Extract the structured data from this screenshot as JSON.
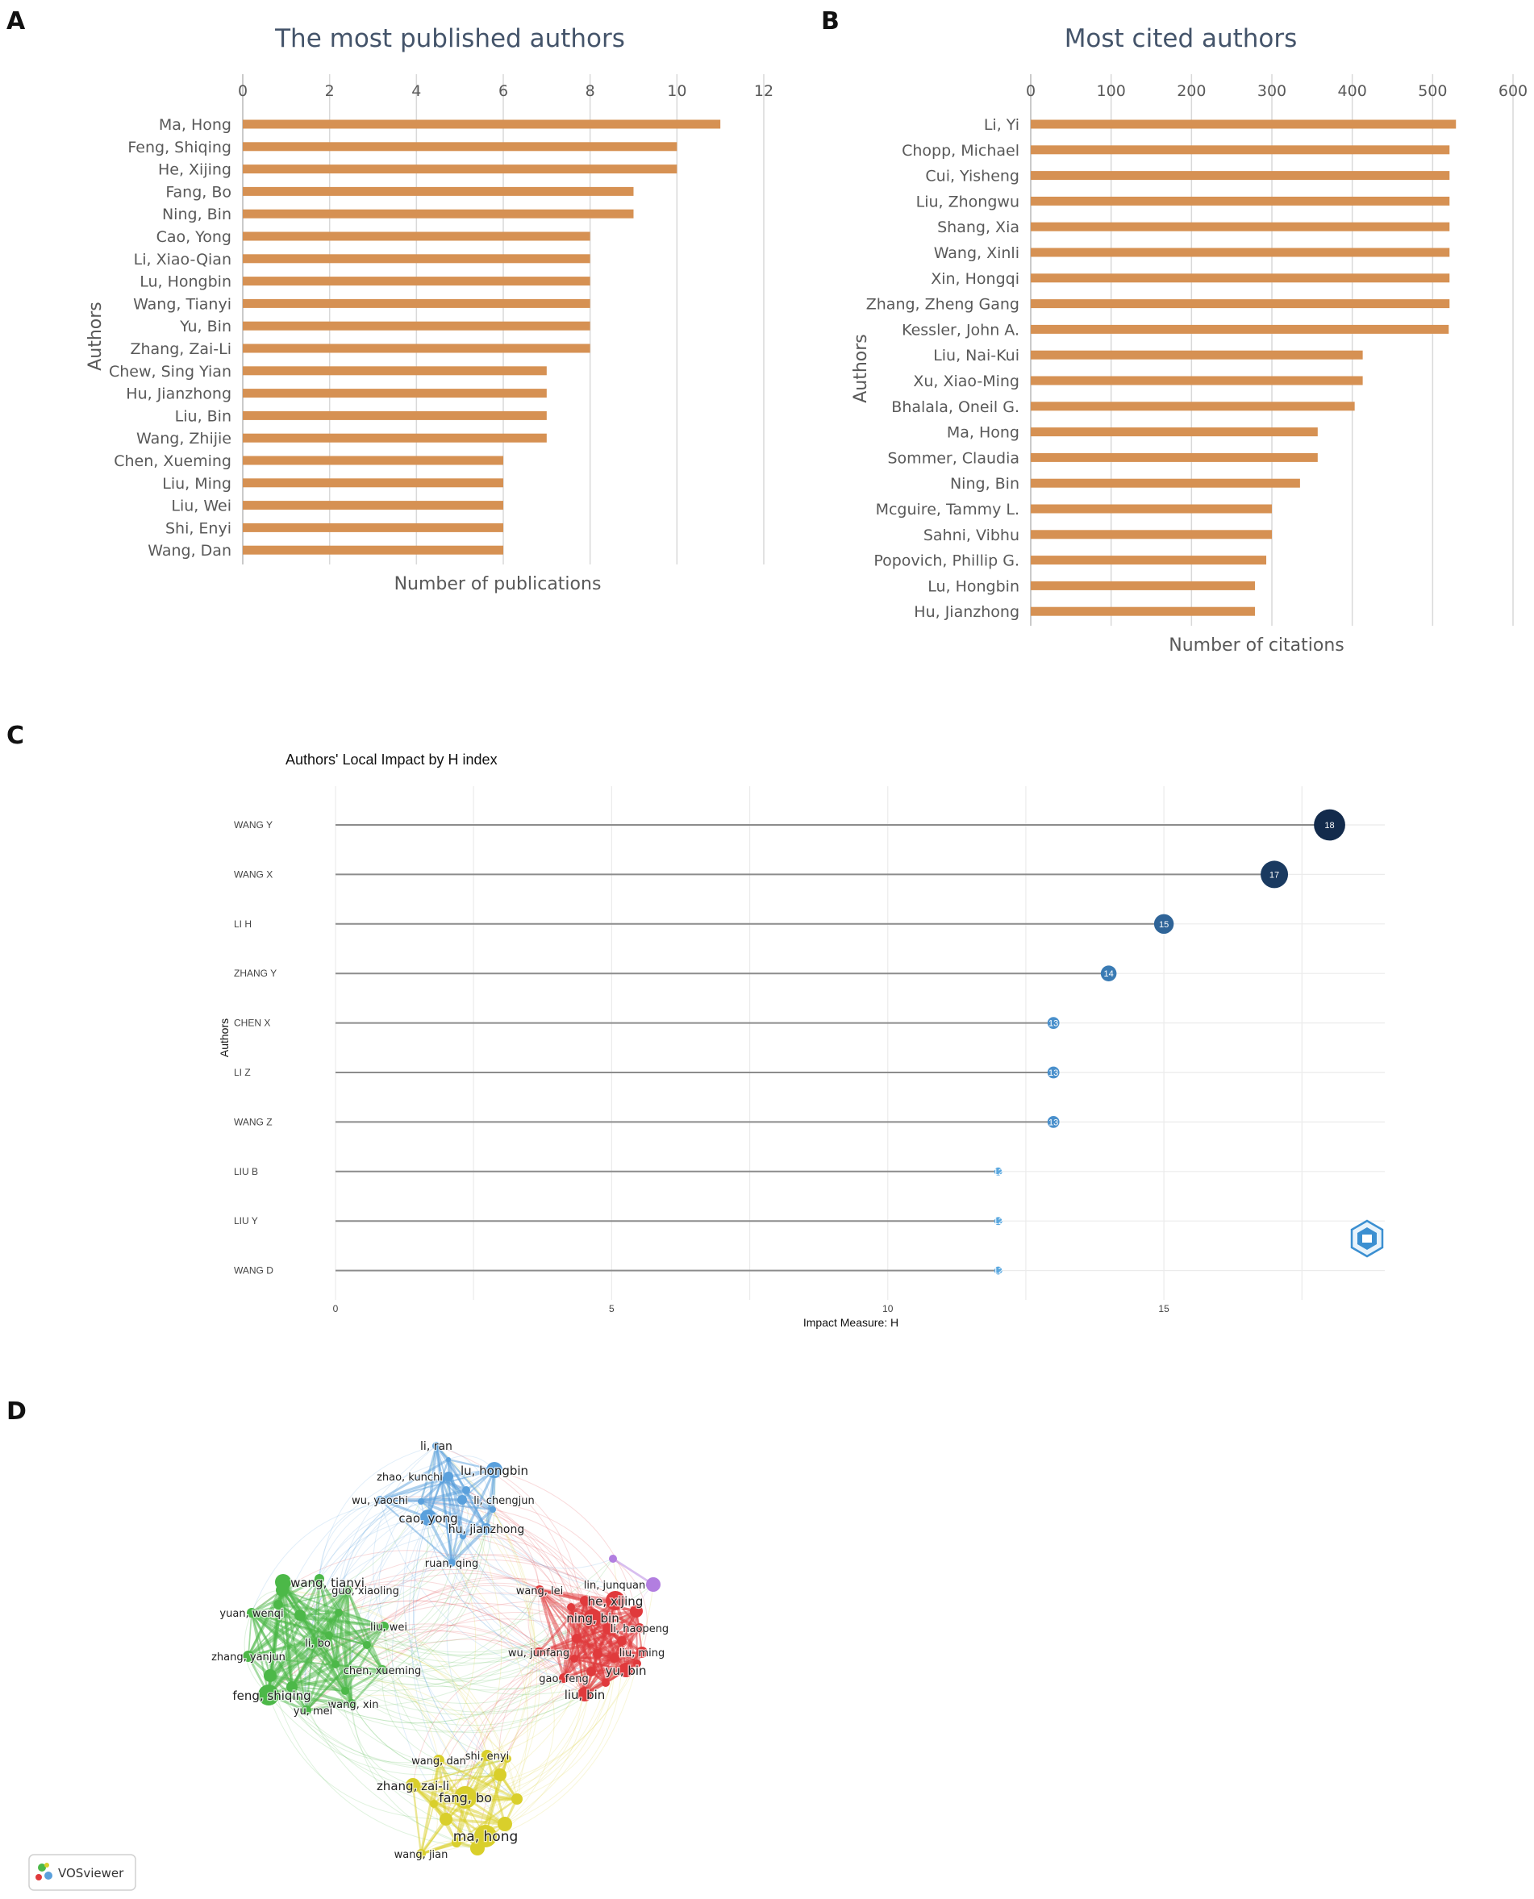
{
  "panels": {
    "A": "A",
    "B": "B",
    "C": "C",
    "D": "D"
  },
  "chart_data": [
    {
      "id": "A",
      "type": "bar",
      "orientation": "horizontal",
      "title": "The most published authors",
      "xlabel": "Number of publications",
      "ylabel": "Authors",
      "xlim": [
        0,
        12
      ],
      "xticks": [
        0,
        2,
        4,
        6,
        8,
        10,
        12
      ],
      "categories": [
        "Ma, Hong",
        "Feng, Shiqing",
        "He, Xijing",
        "Fang, Bo",
        "Ning, Bin",
        "Cao, Yong",
        "Li, Xiao-Qian",
        "Lu, Hongbin",
        "Wang, Tianyi",
        "Yu, Bin",
        "Zhang, Zai-Li",
        "Chew, Sing Yian",
        "Hu, Jianzhong",
        "Liu, Bin",
        "Wang, Zhijie",
        "Chen, Xueming",
        "Liu, Ming",
        "Liu, Wei",
        "Shi, Enyi",
        "Wang, Dan"
      ],
      "values": [
        11,
        10,
        10,
        9,
        9,
        8,
        8,
        8,
        8,
        8,
        8,
        7,
        7,
        7,
        7,
        6,
        6,
        6,
        6,
        6
      ],
      "bar_color": "#d69153"
    },
    {
      "id": "B",
      "type": "bar",
      "orientation": "horizontal",
      "title": "Most cited authors",
      "xlabel": "Number of citations",
      "ylabel": "Authors",
      "xlim": [
        0,
        600
      ],
      "xticks": [
        0,
        100,
        200,
        300,
        400,
        500,
        600
      ],
      "categories": [
        "Li, Yi",
        "Chopp, Michael",
        "Cui, Yisheng",
        "Liu, Zhongwu",
        "Shang, Xia",
        "Wang, Xinli",
        "Xin, Hongqi",
        "Zhang, Zheng Gang",
        "Kessler, John A.",
        "Liu, Nai-Kui",
        "Xu, Xiao-Ming",
        "Bhalala, Oneil G.",
        "Ma, Hong",
        "Sommer, Claudia",
        "Ning, Bin",
        "Mcguire, Tammy L.",
        "Sahni, Vibhu",
        "Popovich, Phillip G.",
        "Lu, Hongbin",
        "Hu, Jianzhong"
      ],
      "values": [
        529,
        521,
        521,
        521,
        521,
        521,
        521,
        521,
        520,
        413,
        413,
        403,
        357,
        357,
        335,
        300,
        300,
        293,
        279,
        279
      ],
      "bar_color": "#d69153"
    },
    {
      "id": "C",
      "type": "lollipop",
      "title": "Authors' Local Impact by H index",
      "xlabel": "Impact Measure: H",
      "ylabel": "Authors",
      "xlim": [
        0,
        19
      ],
      "xticks": [
        0,
        5,
        10,
        15
      ],
      "categories": [
        "WANG Y",
        "WANG X",
        "LI H",
        "ZHANG Y",
        "CHEN X",
        "LI Z",
        "WANG Z",
        "LIU B",
        "LIU Y",
        "WANG D"
      ],
      "values": [
        18,
        17,
        15,
        14,
        13,
        13,
        13,
        12,
        12,
        12
      ],
      "colors": {
        "18": "#132b4c",
        "17": "#1a3a60",
        "15": "#2f6498",
        "14": "#3a7bb4",
        "13": "#4a90cc",
        "12": "#5aa8e0"
      }
    },
    {
      "id": "D",
      "type": "network",
      "title": "",
      "clusters": [
        {
          "name": "blue",
          "color": "#5aa0dc",
          "nodes": [
            "li, ran",
            "lu, hongbin",
            "zhao, kunchi",
            "li, chengjun",
            "wu, yaochi",
            "cao, yong",
            "hu, jianzhong",
            "ruan, qing"
          ]
        },
        {
          "name": "green",
          "color": "#4cb848",
          "nodes": [
            "wang, tianyi",
            "guo, xiaoling",
            "yuan, wenqi",
            "liu, wei",
            "li, bo",
            "zhang, yanjun",
            "chen, xueming",
            "feng, shiqing",
            "wang, xin",
            "yu, mei"
          ]
        },
        {
          "name": "red",
          "color": "#e03a3c",
          "nodes": [
            "wang, lei",
            "he, xijing",
            "ning, bin",
            "li, haopeng",
            "liu, ming",
            "wu, junfang",
            "yu, bin",
            "gao, feng",
            "liu, bin"
          ]
        },
        {
          "name": "yellow",
          "color": "#d9cf2b",
          "nodes": [
            "wang, dan",
            "shi, enyi",
            "zhang, zai-li",
            "fang, bo",
            "ma, hong",
            "wang, jian"
          ]
        },
        {
          "name": "purple",
          "color": "#b27ee0",
          "nodes": [
            "lin, junquan"
          ]
        }
      ]
    }
  ],
  "vosviewer": {
    "label": "VOSviewer"
  }
}
